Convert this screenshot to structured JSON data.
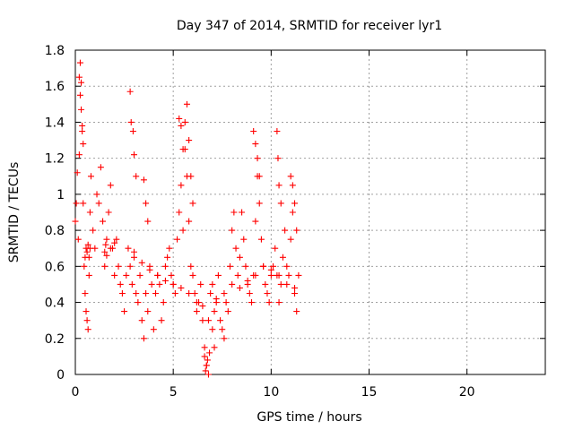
{
  "chart_data": {
    "type": "scatter",
    "title": "Day 347 of 2014, SRMTID for receiver lyr1",
    "xlabel": "GPS time / hours",
    "ylabel": "SRMTID / TECUs",
    "xlim": [
      0,
      24
    ],
    "ylim": [
      0,
      1.8
    ],
    "xticks": [
      0,
      5,
      10,
      15,
      20
    ],
    "yticks": [
      0,
      0.2,
      0.4,
      0.6,
      0.8,
      1,
      1.2,
      1.4,
      1.6,
      1.8
    ],
    "xtick_labels": [
      "0",
      "5",
      "10",
      "15",
      "20"
    ],
    "ytick_labels": [
      "0",
      "0.2",
      "0.4",
      "0.6",
      "0.8",
      "1",
      "1.2",
      "1.4",
      "1.6",
      "1.8"
    ],
    "grid": true,
    "marker": "plus",
    "series": [
      {
        "name": "lyr1",
        "color": "#ff0000",
        "x": [
          0.0,
          0.05,
          0.1,
          0.15,
          0.2,
          0.25,
          0.3,
          0.35,
          0.4,
          0.45,
          0.5,
          0.55,
          0.6,
          0.65,
          0.7,
          0.75,
          0.8,
          0.9,
          1.0,
          1.1,
          1.2,
          1.3,
          1.4,
          1.5,
          1.6,
          1.7,
          1.8,
          1.9,
          2.0,
          2.1,
          2.2,
          2.3,
          2.4,
          2.5,
          2.6,
          2.7,
          2.8,
          2.9,
          3.0,
          3.1,
          3.2,
          3.3,
          3.4,
          3.5,
          3.6,
          3.7,
          3.8,
          3.9,
          4.0,
          4.1,
          4.2,
          4.3,
          4.4,
          4.5,
          4.6,
          4.7,
          4.8,
          4.9,
          5.0,
          5.1,
          5.2,
          5.3,
          5.4,
          5.5,
          5.6,
          5.7,
          5.8,
          5.9,
          6.0,
          6.1,
          6.2,
          6.3,
          6.4,
          6.5,
          6.6,
          6.7,
          6.8,
          6.9,
          7.0,
          7.1,
          7.2,
          7.3,
          7.4,
          7.5,
          7.6,
          7.7,
          7.8,
          7.9,
          8.0,
          8.1,
          8.2,
          8.3,
          8.4,
          8.5,
          8.6,
          8.7,
          8.8,
          8.9,
          9.0,
          9.1,
          9.2,
          9.3,
          9.4,
          9.5,
          9.6,
          9.7,
          9.8,
          9.9,
          10.0,
          10.1,
          10.2,
          10.3,
          10.4,
          10.5,
          10.6,
          10.7,
          10.8,
          10.9,
          11.0,
          11.1,
          11.2,
          11.3,
          11.4,
          0.2,
          0.25,
          0.3,
          0.35,
          0.4,
          2.8,
          2.85,
          2.95,
          3.0,
          3.1,
          3.5,
          3.6,
          3.7,
          5.3,
          5.4,
          5.5,
          5.6,
          5.7,
          5.8,
          5.9,
          6.0,
          6.6,
          6.65,
          6.7,
          6.75,
          6.8,
          6.85,
          7.0,
          7.1,
          9.1,
          9.2,
          9.3,
          9.4,
          10.3,
          10.35,
          10.4,
          10.5,
          11.0,
          11.1,
          11.2,
          11.3,
          0.5,
          0.55,
          0.6,
          0.65,
          0.7,
          0.75,
          1.5,
          1.55,
          1.6,
          1.8,
          2.0,
          3.0,
          3.4,
          3.8,
          4.2,
          4.6,
          5.0,
          5.4,
          5.8,
          6.2,
          6.5,
          7.2,
          7.6,
          8.0,
          8.4,
          8.8,
          9.2,
          9.6,
          10.0,
          10.4,
          10.8,
          11.2
        ],
        "y": [
          0.85,
          0.95,
          1.12,
          0.75,
          1.65,
          1.73,
          1.47,
          1.35,
          0.95,
          0.6,
          0.45,
          0.35,
          0.3,
          0.25,
          0.55,
          0.9,
          1.1,
          0.8,
          0.7,
          1.0,
          0.95,
          1.15,
          0.85,
          0.6,
          0.75,
          0.9,
          1.05,
          0.7,
          0.55,
          0.75,
          0.6,
          0.5,
          0.45,
          0.35,
          0.55,
          0.7,
          0.6,
          0.5,
          0.65,
          0.45,
          0.4,
          0.55,
          0.3,
          0.2,
          0.45,
          0.35,
          0.6,
          0.5,
          0.25,
          0.45,
          0.55,
          0.5,
          0.3,
          0.4,
          0.6,
          0.65,
          0.7,
          0.55,
          0.5,
          0.45,
          0.75,
          0.9,
          1.05,
          0.8,
          1.25,
          1.1,
          0.85,
          0.6,
          0.55,
          0.45,
          0.35,
          0.4,
          0.5,
          0.3,
          0.15,
          0.05,
          0.3,
          0.45,
          0.5,
          0.35,
          0.4,
          0.55,
          0.3,
          0.25,
          0.2,
          0.4,
          0.35,
          0.6,
          0.8,
          0.9,
          0.7,
          0.55,
          0.65,
          0.9,
          0.75,
          0.6,
          0.5,
          0.45,
          0.4,
          0.55,
          0.85,
          1.1,
          0.95,
          0.75,
          0.6,
          0.5,
          0.45,
          0.4,
          0.55,
          0.6,
          0.7,
          0.55,
          0.4,
          0.5,
          0.65,
          0.8,
          0.6,
          0.55,
          0.75,
          0.9,
          0.45,
          0.35,
          0.55,
          1.22,
          1.55,
          1.62,
          1.38,
          1.28,
          1.57,
          1.4,
          1.35,
          1.22,
          1.1,
          1.08,
          0.95,
          0.85,
          1.42,
          1.38,
          1.25,
          1.4,
          1.5,
          1.3,
          1.1,
          0.95,
          0.1,
          0.02,
          0.05,
          0.08,
          0.0,
          0.12,
          0.25,
          0.15,
          1.35,
          1.28,
          1.2,
          1.1,
          1.35,
          1.2,
          1.05,
          0.95,
          1.1,
          1.05,
          0.95,
          0.8,
          0.65,
          0.7,
          0.68,
          0.72,
          0.65,
          0.7,
          0.68,
          0.72,
          0.66,
          0.7,
          0.73,
          0.68,
          0.62,
          0.58,
          0.55,
          0.52,
          0.5,
          0.48,
          0.45,
          0.4,
          0.38,
          0.42,
          0.45,
          0.5,
          0.48,
          0.52,
          0.55,
          0.6,
          0.58,
          0.55,
          0.5,
          0.48
        ]
      }
    ]
  }
}
